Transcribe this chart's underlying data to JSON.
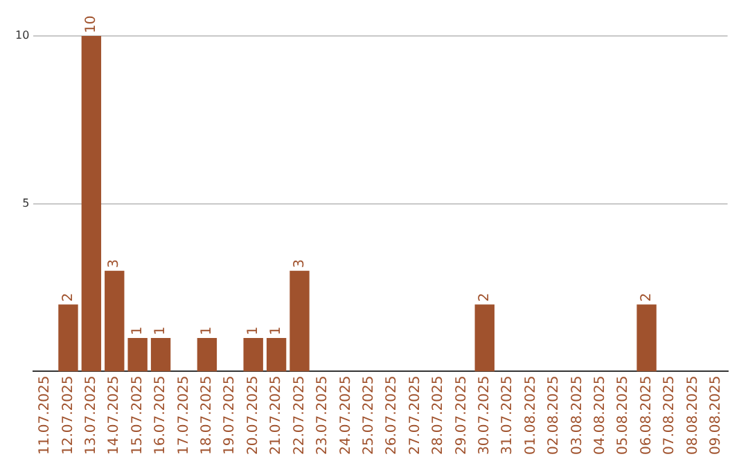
{
  "chart_data": {
    "type": "bar",
    "categories": [
      "11.07.2025",
      "12.07.2025",
      "13.07.2025",
      "14.07.2025",
      "15.07.2025",
      "16.07.2025",
      "17.07.2025",
      "18.07.2025",
      "19.07.2025",
      "20.07.2025",
      "21.07.2025",
      "22.07.2025",
      "23.07.2025",
      "24.07.2025",
      "25.07.2025",
      "26.07.2025",
      "27.07.2025",
      "28.07.2025",
      "29.07.2025",
      "30.07.2025",
      "31.07.2025",
      "01.08.2025",
      "02.08.2025",
      "03.08.2025",
      "04.08.2025",
      "05.08.2025",
      "06.08.2025",
      "07.08.2025",
      "08.08.2025",
      "09.08.2025"
    ],
    "values": [
      0,
      2,
      10,
      3,
      1,
      1,
      0,
      1,
      0,
      1,
      1,
      3,
      0,
      0,
      0,
      0,
      0,
      0,
      0,
      2,
      0,
      0,
      0,
      0,
      0,
      0,
      2,
      0,
      0,
      0
    ],
    "value_labels": [
      null,
      "2",
      "10",
      "3",
      "1",
      "1",
      null,
      "1",
      null,
      "1",
      "1",
      "3",
      null,
      null,
      null,
      null,
      null,
      null,
      null,
      "2",
      null,
      null,
      null,
      null,
      null,
      null,
      "2",
      null,
      null,
      null
    ],
    "color": "#a0522d",
    "ylim": [
      0,
      10
    ],
    "yticks": [
      5,
      10
    ],
    "grid": "y",
    "legend": false
  }
}
